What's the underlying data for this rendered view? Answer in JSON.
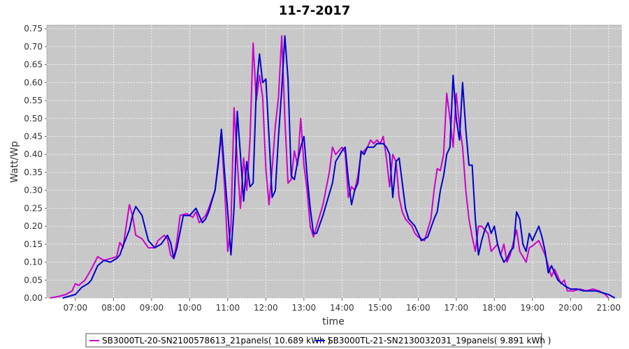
{
  "chart_data": {
    "type": "line",
    "title": "11-7-2017",
    "xlabel": "time",
    "ylabel": "Watt/Wp",
    "xlim": [
      "06:15",
      "21:20"
    ],
    "ylim": [
      0,
      0.76
    ],
    "x_ticks": [
      "07:00",
      "08:00",
      "09:00",
      "10:00",
      "11:00",
      "12:00",
      "13:00",
      "14:00",
      "15:00",
      "16:00",
      "17:00",
      "18:00",
      "19:00",
      "20:00",
      "21:00"
    ],
    "y_ticks": [
      "0.00",
      "0.05",
      "0.10",
      "0.15",
      "0.20",
      "0.25",
      "0.30",
      "0.35",
      "0.40",
      "0.45",
      "0.50",
      "0.55",
      "0.60",
      "0.65",
      "0.70",
      "0.75"
    ],
    "grid": true,
    "legend_position": "bottom",
    "series": [
      {
        "name": "SB3000TL-20-SN2100578613_21panels( 10.689 kWh )",
        "color": "#cc00cc",
        "points": [
          [
            "06:20",
            0.0
          ],
          [
            "06:35",
            0.005
          ],
          [
            "06:45",
            0.01
          ],
          [
            "06:55",
            0.02
          ],
          [
            "07:00",
            0.04
          ],
          [
            "07:05",
            0.035
          ],
          [
            "07:15",
            0.05
          ],
          [
            "07:25",
            0.08
          ],
          [
            "07:35",
            0.115
          ],
          [
            "07:45",
            0.105
          ],
          [
            "07:55",
            0.11
          ],
          [
            "08:05",
            0.115
          ],
          [
            "08:10",
            0.155
          ],
          [
            "08:15",
            0.14
          ],
          [
            "08:20",
            0.2
          ],
          [
            "08:25",
            0.26
          ],
          [
            "08:30",
            0.23
          ],
          [
            "08:35",
            0.175
          ],
          [
            "08:45",
            0.165
          ],
          [
            "08:55",
            0.14
          ],
          [
            "09:05",
            0.14
          ],
          [
            "09:10",
            0.16
          ],
          [
            "09:20",
            0.175
          ],
          [
            "09:25",
            0.165
          ],
          [
            "09:30",
            0.12
          ],
          [
            "09:35",
            0.11
          ],
          [
            "09:40",
            0.16
          ],
          [
            "09:45",
            0.23
          ],
          [
            "09:55",
            0.235
          ],
          [
            "10:05",
            0.225
          ],
          [
            "10:10",
            0.24
          ],
          [
            "10:15",
            0.21
          ],
          [
            "10:25",
            0.23
          ],
          [
            "10:30",
            0.25
          ],
          [
            "10:35",
            0.275
          ],
          [
            "10:40",
            0.3
          ],
          [
            "10:45",
            0.38
          ],
          [
            "10:50",
            0.45
          ],
          [
            "10:55",
            0.31
          ],
          [
            "11:00",
            0.13
          ],
          [
            "11:05",
            0.2
          ],
          [
            "11:10",
            0.53
          ],
          [
            "11:15",
            0.38
          ],
          [
            "11:20",
            0.25
          ],
          [
            "11:25",
            0.39
          ],
          [
            "11:30",
            0.3
          ],
          [
            "11:35",
            0.44
          ],
          [
            "11:40",
            0.71
          ],
          [
            "11:45",
            0.55
          ],
          [
            "11:50",
            0.62
          ],
          [
            "11:55",
            0.56
          ],
          [
            "12:00",
            0.36
          ],
          [
            "12:05",
            0.26
          ],
          [
            "12:10",
            0.36
          ],
          [
            "12:15",
            0.48
          ],
          [
            "12:20",
            0.56
          ],
          [
            "12:25",
            0.73
          ],
          [
            "12:30",
            0.5
          ],
          [
            "12:35",
            0.32
          ],
          [
            "12:40",
            0.33
          ],
          [
            "12:45",
            0.41
          ],
          [
            "12:50",
            0.37
          ],
          [
            "12:55",
            0.5
          ],
          [
            "13:00",
            0.37
          ],
          [
            "13:05",
            0.3
          ],
          [
            "13:10",
            0.2
          ],
          [
            "13:15",
            0.17
          ],
          [
            "13:20",
            0.2
          ],
          [
            "13:30",
            0.26
          ],
          [
            "13:40",
            0.35
          ],
          [
            "13:45",
            0.42
          ],
          [
            "13:50",
            0.4
          ],
          [
            "14:00",
            0.42
          ],
          [
            "14:05",
            0.405
          ],
          [
            "14:10",
            0.28
          ],
          [
            "14:15",
            0.31
          ],
          [
            "14:20",
            0.3
          ],
          [
            "14:25",
            0.34
          ],
          [
            "14:30",
            0.4
          ],
          [
            "14:35",
            0.41
          ],
          [
            "14:40",
            0.42
          ],
          [
            "14:45",
            0.44
          ],
          [
            "14:50",
            0.43
          ],
          [
            "14:55",
            0.44
          ],
          [
            "15:00",
            0.43
          ],
          [
            "15:05",
            0.45
          ],
          [
            "15:10",
            0.39
          ],
          [
            "15:15",
            0.31
          ],
          [
            "15:20",
            0.4
          ],
          [
            "15:25",
            0.38
          ],
          [
            "15:30",
            0.28
          ],
          [
            "15:35",
            0.24
          ],
          [
            "15:40",
            0.22
          ],
          [
            "15:45",
            0.21
          ],
          [
            "15:50",
            0.2
          ],
          [
            "15:55",
            0.18
          ],
          [
            "16:00",
            0.17
          ],
          [
            "16:10",
            0.16
          ],
          [
            "16:20",
            0.22
          ],
          [
            "16:25",
            0.3
          ],
          [
            "16:30",
            0.36
          ],
          [
            "16:35",
            0.355
          ],
          [
            "16:40",
            0.4
          ],
          [
            "16:45",
            0.57
          ],
          [
            "16:50",
            0.5
          ],
          [
            "16:55",
            0.42
          ],
          [
            "17:00",
            0.57
          ],
          [
            "17:05",
            0.48
          ],
          [
            "17:10",
            0.42
          ],
          [
            "17:15",
            0.3
          ],
          [
            "17:20",
            0.22
          ],
          [
            "17:25",
            0.17
          ],
          [
            "17:30",
            0.13
          ],
          [
            "17:35",
            0.2
          ],
          [
            "17:40",
            0.2
          ],
          [
            "17:45",
            0.19
          ],
          [
            "17:50",
            0.18
          ],
          [
            "17:55",
            0.13
          ],
          [
            "18:05",
            0.15
          ],
          [
            "18:10",
            0.12
          ],
          [
            "18:15",
            0.15
          ],
          [
            "18:20",
            0.1
          ],
          [
            "18:25",
            0.12
          ],
          [
            "18:35",
            0.19
          ],
          [
            "18:40",
            0.13
          ],
          [
            "18:50",
            0.1
          ],
          [
            "18:55",
            0.14
          ],
          [
            "19:00",
            0.145
          ],
          [
            "19:10",
            0.16
          ],
          [
            "19:15",
            0.14
          ],
          [
            "19:20",
            0.12
          ],
          [
            "19:25",
            0.09
          ],
          [
            "19:30",
            0.06
          ],
          [
            "19:35",
            0.08
          ],
          [
            "19:40",
            0.06
          ],
          [
            "19:45",
            0.04
          ],
          [
            "19:50",
            0.05
          ],
          [
            "19:55",
            0.02
          ],
          [
            "20:05",
            0.02
          ],
          [
            "20:15",
            0.025
          ],
          [
            "20:25",
            0.02
          ],
          [
            "20:35",
            0.025
          ],
          [
            "20:45",
            0.02
          ],
          [
            "20:55",
            0.01
          ],
          [
            "21:00",
            0.0
          ]
        ]
      },
      {
        "name": "SB3000TL-21-SN2130032031_19panels( 9.891 kWh )",
        "color": "#0000cc",
        "points": [
          [
            "06:40",
            0.0
          ],
          [
            "06:50",
            0.005
          ],
          [
            "07:00",
            0.01
          ],
          [
            "07:10",
            0.03
          ],
          [
            "07:20",
            0.04
          ],
          [
            "07:25",
            0.05
          ],
          [
            "07:35",
            0.09
          ],
          [
            "07:45",
            0.105
          ],
          [
            "07:55",
            0.1
          ],
          [
            "08:05",
            0.11
          ],
          [
            "08:10",
            0.12
          ],
          [
            "08:15",
            0.145
          ],
          [
            "08:25",
            0.19
          ],
          [
            "08:30",
            0.23
          ],
          [
            "08:35",
            0.255
          ],
          [
            "08:45",
            0.23
          ],
          [
            "08:55",
            0.16
          ],
          [
            "09:05",
            0.14
          ],
          [
            "09:15",
            0.15
          ],
          [
            "09:25",
            0.175
          ],
          [
            "09:30",
            0.155
          ],
          [
            "09:35",
            0.11
          ],
          [
            "09:40",
            0.14
          ],
          [
            "09:50",
            0.23
          ],
          [
            "10:00",
            0.23
          ],
          [
            "10:10",
            0.25
          ],
          [
            "10:20",
            0.21
          ],
          [
            "10:25",
            0.22
          ],
          [
            "10:30",
            0.24
          ],
          [
            "10:40",
            0.3
          ],
          [
            "10:45",
            0.37
          ],
          [
            "10:50",
            0.47
          ],
          [
            "10:55",
            0.35
          ],
          [
            "11:00",
            0.24
          ],
          [
            "11:05",
            0.12
          ],
          [
            "11:10",
            0.25
          ],
          [
            "11:15",
            0.52
          ],
          [
            "11:20",
            0.4
          ],
          [
            "11:25",
            0.27
          ],
          [
            "11:30",
            0.38
          ],
          [
            "11:35",
            0.31
          ],
          [
            "11:40",
            0.32
          ],
          [
            "11:45",
            0.58
          ],
          [
            "11:50",
            0.68
          ],
          [
            "11:55",
            0.6
          ],
          [
            "12:00",
            0.61
          ],
          [
            "12:05",
            0.45
          ],
          [
            "12:10",
            0.28
          ],
          [
            "12:15",
            0.3
          ],
          [
            "12:20",
            0.45
          ],
          [
            "12:25",
            0.58
          ],
          [
            "12:30",
            0.73
          ],
          [
            "12:35",
            0.61
          ],
          [
            "12:40",
            0.34
          ],
          [
            "12:45",
            0.33
          ],
          [
            "12:50",
            0.38
          ],
          [
            "12:55",
            0.42
          ],
          [
            "13:00",
            0.45
          ],
          [
            "13:05",
            0.34
          ],
          [
            "13:10",
            0.25
          ],
          [
            "13:15",
            0.18
          ],
          [
            "13:20",
            0.18
          ],
          [
            "13:30",
            0.23
          ],
          [
            "13:35",
            0.26
          ],
          [
            "13:45",
            0.32
          ],
          [
            "13:50",
            0.38
          ],
          [
            "14:00",
            0.41
          ],
          [
            "14:05",
            0.42
          ],
          [
            "14:10",
            0.33
          ],
          [
            "14:15",
            0.26
          ],
          [
            "14:20",
            0.3
          ],
          [
            "14:25",
            0.32
          ],
          [
            "14:30",
            0.41
          ],
          [
            "14:35",
            0.4
          ],
          [
            "14:40",
            0.42
          ],
          [
            "14:45",
            0.42
          ],
          [
            "14:50",
            0.42
          ],
          [
            "14:55",
            0.43
          ],
          [
            "15:05",
            0.43
          ],
          [
            "15:10",
            0.42
          ],
          [
            "15:15",
            0.4
          ],
          [
            "15:20",
            0.28
          ],
          [
            "15:25",
            0.38
          ],
          [
            "15:30",
            0.39
          ],
          [
            "15:40",
            0.25
          ],
          [
            "15:45",
            0.22
          ],
          [
            "15:55",
            0.2
          ],
          [
            "16:05",
            0.16
          ],
          [
            "16:15",
            0.17
          ],
          [
            "16:25",
            0.22
          ],
          [
            "16:30",
            0.24
          ],
          [
            "16:35",
            0.3
          ],
          [
            "16:40",
            0.34
          ],
          [
            "16:45",
            0.4
          ],
          [
            "16:50",
            0.42
          ],
          [
            "16:55",
            0.62
          ],
          [
            "17:00",
            0.5
          ],
          [
            "17:05",
            0.44
          ],
          [
            "17:10",
            0.6
          ],
          [
            "17:15",
            0.47
          ],
          [
            "17:20",
            0.37
          ],
          [
            "17:25",
            0.37
          ],
          [
            "17:30",
            0.22
          ],
          [
            "17:35",
            0.12
          ],
          [
            "17:40",
            0.16
          ],
          [
            "17:45",
            0.19
          ],
          [
            "17:50",
            0.21
          ],
          [
            "17:55",
            0.18
          ],
          [
            "18:00",
            0.2
          ],
          [
            "18:05",
            0.15
          ],
          [
            "18:10",
            0.12
          ],
          [
            "18:15",
            0.1
          ],
          [
            "18:20",
            0.11
          ],
          [
            "18:25",
            0.13
          ],
          [
            "18:30",
            0.14
          ],
          [
            "18:35",
            0.24
          ],
          [
            "18:40",
            0.22
          ],
          [
            "18:45",
            0.15
          ],
          [
            "18:50",
            0.13
          ],
          [
            "18:55",
            0.18
          ],
          [
            "19:00",
            0.16
          ],
          [
            "19:10",
            0.2
          ],
          [
            "19:15",
            0.17
          ],
          [
            "19:20",
            0.13
          ],
          [
            "19:25",
            0.07
          ],
          [
            "19:30",
            0.09
          ],
          [
            "19:35",
            0.07
          ],
          [
            "19:40",
            0.05
          ],
          [
            "19:50",
            0.035
          ],
          [
            "19:55",
            0.03
          ],
          [
            "20:00",
            0.025
          ],
          [
            "20:10",
            0.025
          ],
          [
            "20:20",
            0.02
          ],
          [
            "20:30",
            0.02
          ],
          [
            "20:40",
            0.02
          ],
          [
            "20:50",
            0.015
          ],
          [
            "21:00",
            0.01
          ],
          [
            "21:10",
            0.0
          ]
        ]
      }
    ]
  }
}
